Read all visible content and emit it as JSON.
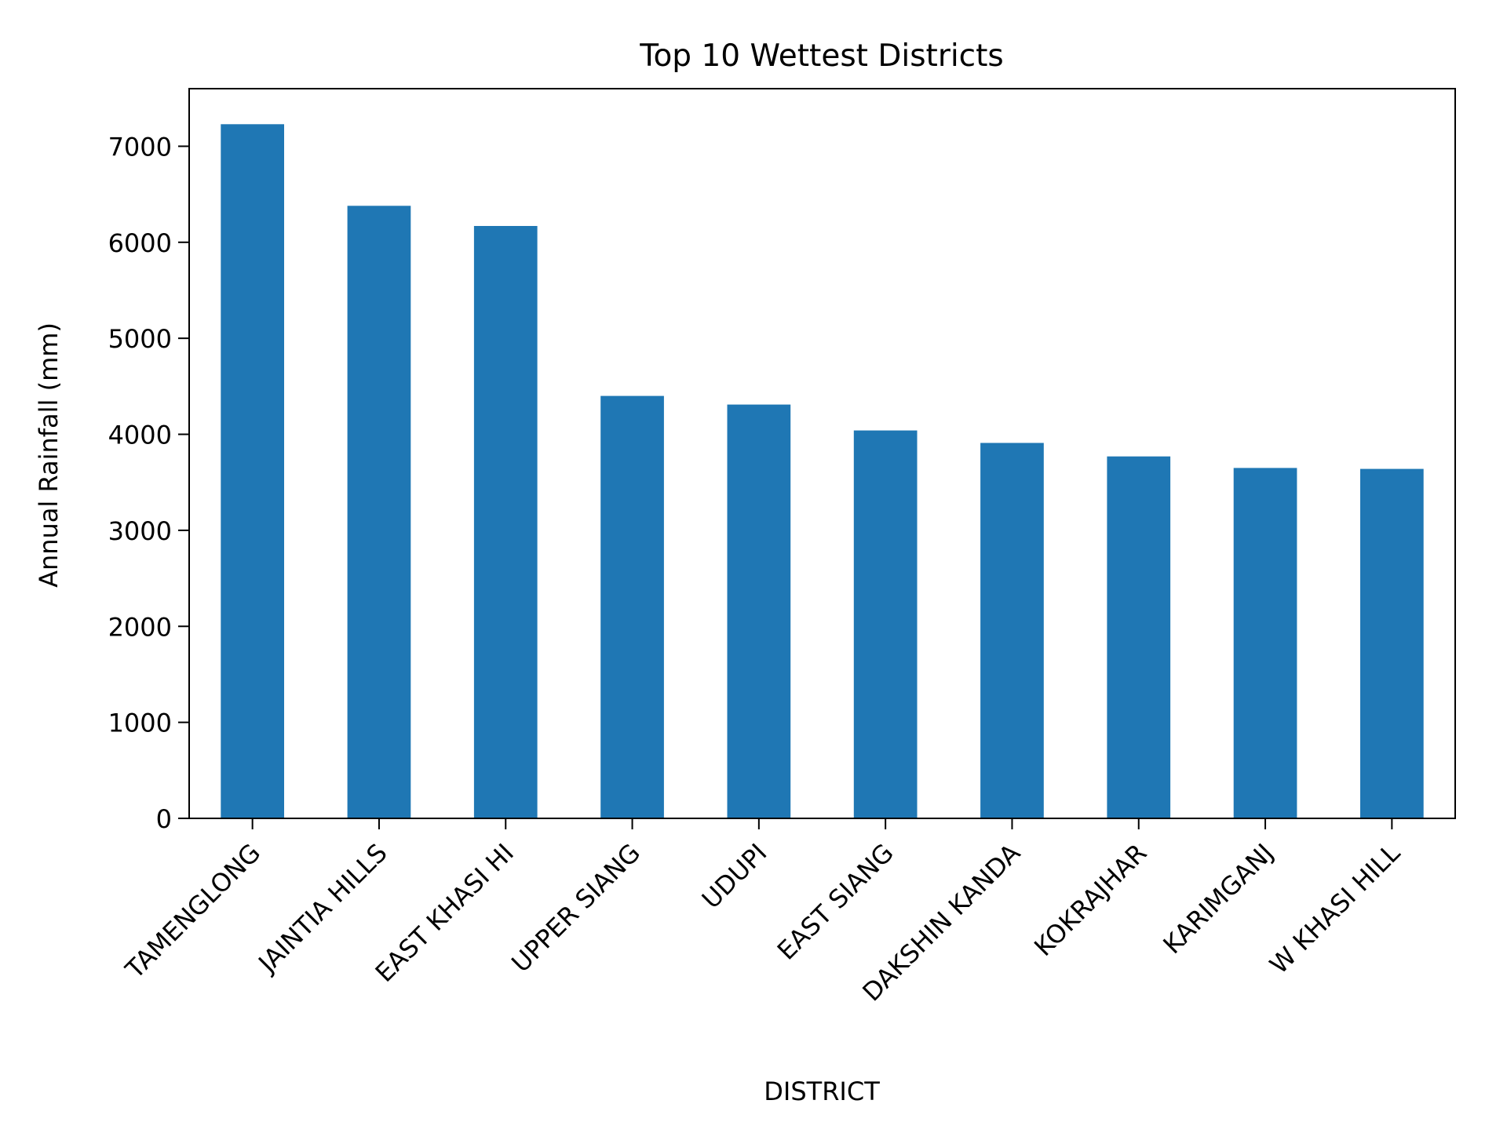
{
  "chart_data": {
    "type": "bar",
    "title": "Top 10 Wettest Districts",
    "xlabel": "DISTRICT",
    "ylabel": "Annual Rainfall (mm)",
    "categories": [
      "TAMENGLONG",
      "JAINTIA HILLS",
      "EAST KHASI HI",
      "UPPER SIANG",
      "UDUPI",
      "EAST SIANG",
      "DAKSHIN KANDA",
      "KOKRAJHAR",
      "KARIMGANJ",
      "W KHASI HILL"
    ],
    "values": [
      7230,
      6380,
      6170,
      4400,
      4310,
      4040,
      3910,
      3770,
      3650,
      3640
    ],
    "ylim": [
      0,
      7600
    ],
    "yticks": [
      0,
      1000,
      2000,
      3000,
      4000,
      5000,
      6000,
      7000
    ],
    "xtick_rotation": 45,
    "grid": false,
    "legend": "none",
    "bar_color": "#1f77b4"
  }
}
